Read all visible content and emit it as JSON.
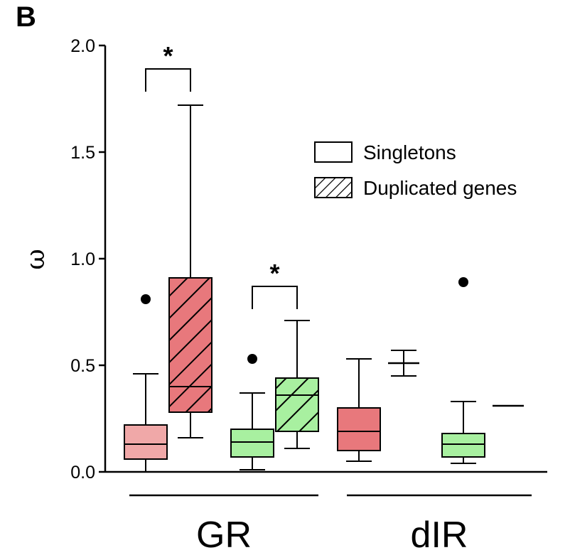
{
  "panel_label": "B",
  "chart_data": {
    "type": "box",
    "ylabel": "ω",
    "xlabel": "",
    "ylim": [
      0,
      2.0
    ],
    "yticks": [
      "0.0",
      "0.5",
      "1.0",
      "1.5",
      "2.0"
    ],
    "groups": [
      "GR",
      "dIR"
    ],
    "legend": {
      "position": "top-right",
      "entries": [
        {
          "label": "Singletons",
          "style": "plain"
        },
        {
          "label": "Duplicated genes",
          "style": "hatched"
        }
      ]
    },
    "colors": {
      "red": "#e8787c",
      "green": "#a8f0a0",
      "red_light": "#f0a8a8"
    },
    "boxes": [
      {
        "group": "GR",
        "type": "Singletons",
        "color": "#f0a8a8",
        "whisker_low": 0.0,
        "q1": 0.06,
        "median": 0.13,
        "q3": 0.22,
        "whisker_high": 0.46,
        "outliers": [
          0.81
        ]
      },
      {
        "group": "GR",
        "type": "Duplicated genes",
        "color": "#e8787c",
        "whisker_low": 0.16,
        "q1": 0.28,
        "median": 0.4,
        "q3": 0.91,
        "whisker_high": 1.72,
        "outliers": []
      },
      {
        "group": "GR",
        "type": "Singletons",
        "color": "#a8f0a0",
        "whisker_low": 0.01,
        "q1": 0.07,
        "median": 0.14,
        "q3": 0.2,
        "whisker_high": 0.37,
        "outliers": [
          0.53
        ]
      },
      {
        "group": "GR",
        "type": "Duplicated genes",
        "color": "#a8f0a0",
        "whisker_low": 0.11,
        "q1": 0.19,
        "median": 0.36,
        "q3": 0.44,
        "whisker_high": 0.71,
        "outliers": []
      },
      {
        "group": "dIR",
        "type": "Singletons",
        "color": "#e8787c",
        "whisker_low": 0.05,
        "q1": 0.1,
        "median": 0.19,
        "q3": 0.3,
        "whisker_high": 0.53,
        "outliers": []
      },
      {
        "group": "dIR",
        "type": "Duplicated genes",
        "color": "#ffffff",
        "whisker_low": 0.45,
        "q1": 0.51,
        "median": 0.51,
        "q3": 0.51,
        "whisker_high": 0.57,
        "outliers": []
      },
      {
        "group": "dIR",
        "type": "Singletons",
        "color": "#a8f0a0",
        "whisker_low": 0.04,
        "q1": 0.07,
        "median": 0.13,
        "q3": 0.18,
        "whisker_high": 0.33,
        "outliers": [
          0.89
        ]
      },
      {
        "group": "dIR",
        "type": "Duplicated genes",
        "color": "#ffffff",
        "whisker_low": 0.31,
        "q1": 0.31,
        "median": 0.31,
        "q3": 0.31,
        "whisker_high": 0.31,
        "outliers": []
      }
    ],
    "significance": [
      {
        "between": [
          0,
          1
        ],
        "label": "*",
        "y": 1.89
      },
      {
        "between": [
          2,
          3
        ],
        "label": "*",
        "y": 0.87
      }
    ]
  }
}
